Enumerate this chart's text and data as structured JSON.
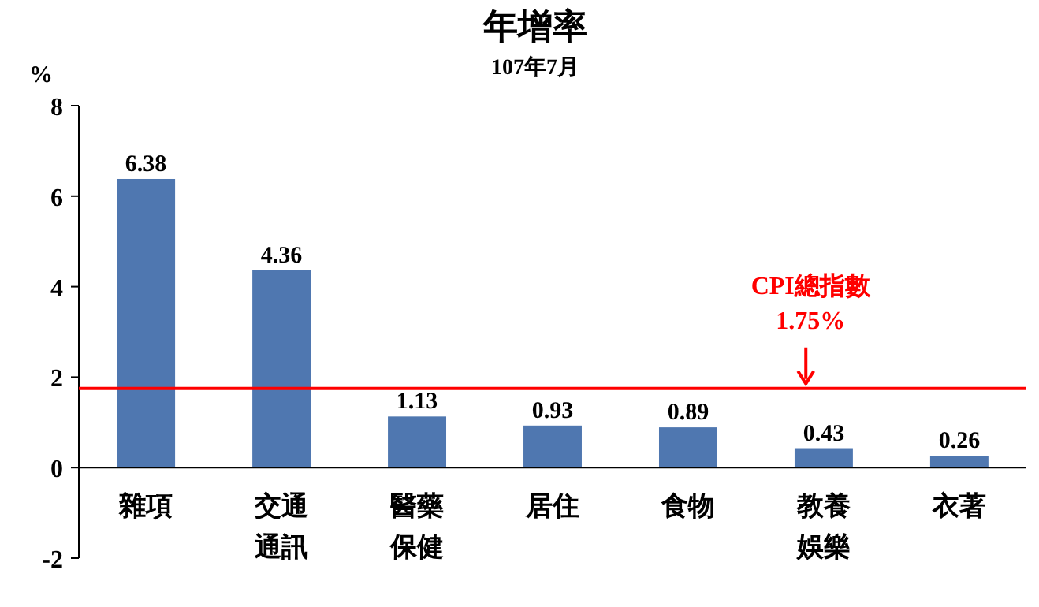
{
  "chart_data": {
    "type": "bar",
    "title": "年增率",
    "subtitle": "107年7月",
    "ylabel": "%",
    "categories": [
      "雜項",
      "交通通訊",
      "醫藥保健",
      "居住",
      "食物",
      "教養娛樂",
      "衣著"
    ],
    "values": [
      6.38,
      4.36,
      1.13,
      0.93,
      0.89,
      0.43,
      0.26
    ],
    "color": "#4f77b0",
    "ylim": [
      -2,
      8
    ],
    "yticks": [
      -2,
      0,
      2,
      4,
      6,
      8
    ],
    "data_labels": true,
    "ref_lines": [
      {
        "axis": "y",
        "value": 1.75,
        "label": "CPI總指數\n1.75%",
        "color": "#ff0000"
      }
    ],
    "grid": false
  }
}
